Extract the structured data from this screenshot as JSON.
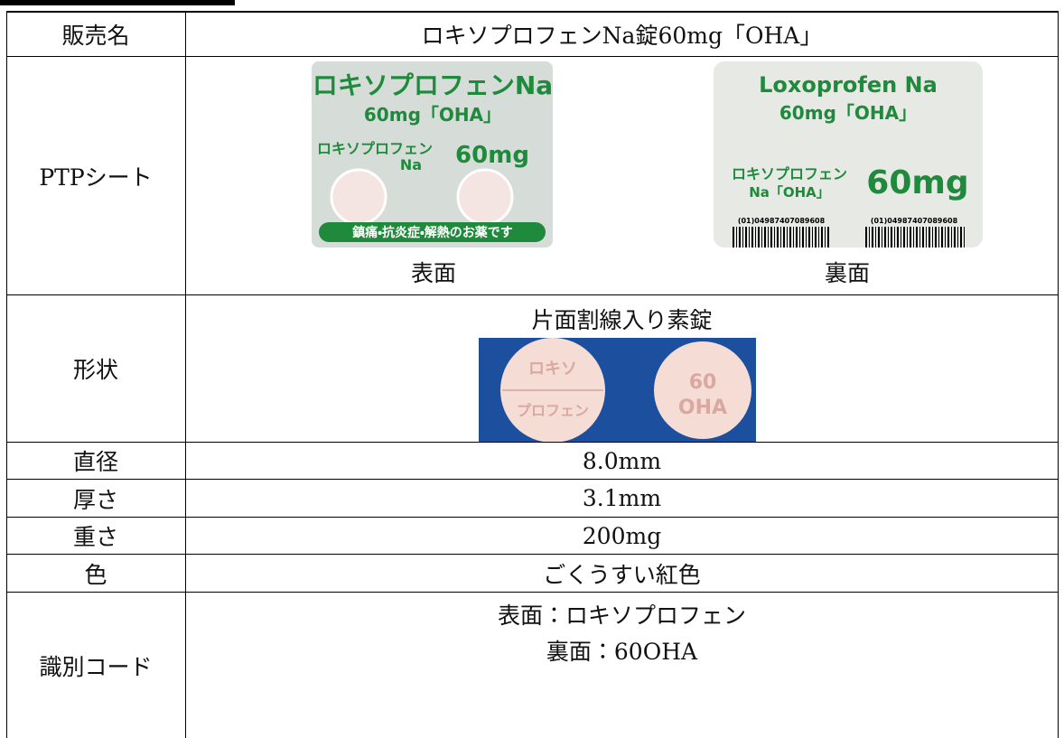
{
  "table": {
    "rows": [
      {
        "label": "販売名",
        "value": "ロキソプロフェンNa錠60mg「OHA」"
      },
      {
        "label": "PTPシート",
        "front_caption": "表面",
        "back_caption": "裏面",
        "front_sheet": {
          "name": "ロキソプロフェンNa",
          "strength": "60mg「OHA」",
          "name_small": "ロキソプロフェン",
          "na": "Na",
          "mg": "60mg",
          "band": "鎮痛・抗炎症・解熱のお薬です"
        },
        "back_sheet": {
          "name": "Loxoprofen Na",
          "strength": "60mg「OHA」",
          "name_small": "ロキソプロフェン",
          "na": "Na「OHA」",
          "mg": "60mg",
          "code": "(01)04987407089608"
        }
      },
      {
        "label": "形状",
        "value": "片面割線入り素錠",
        "tablet_front": [
          "ロキソ",
          "プロフェン"
        ],
        "tablet_back": [
          "60",
          "OHA"
        ]
      },
      {
        "label": "直径",
        "value": "8.0mm"
      },
      {
        "label": "厚さ",
        "value": "3.1mm"
      },
      {
        "label": "重さ",
        "value": "200mg"
      },
      {
        "label": "色",
        "value": "ごくうすい紅色"
      },
      {
        "label": "識別コード",
        "value_lines": [
          "表面：ロキソプロフェン",
          "裏面：60OHA"
        ]
      }
    ]
  }
}
